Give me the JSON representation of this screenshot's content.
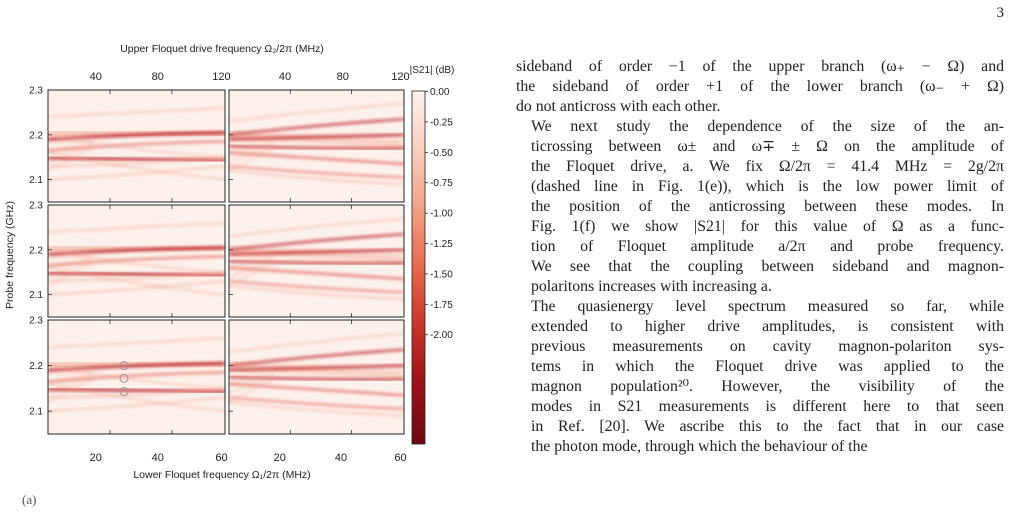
{
  "page": {
    "number": "3"
  },
  "figure": {
    "top_axis_label": "Upper Floquet drive frequency Ω₂/2π (MHz)",
    "bottom_axis_label": "Lower Floquet frequency Ω₁/2π (MHz)",
    "y_axis_label": "Probe frequency (GHz)",
    "colorbar_label": "|S21| (dB)",
    "top_ticks": [
      "40",
      "80",
      "120",
      "40",
      "80",
      "120"
    ],
    "bottom_ticks": [
      "20",
      "40",
      "60",
      "20",
      "40",
      "60"
    ],
    "y_ticks": [
      "2.3",
      "2.2",
      "2.1"
    ],
    "colorbar_ticks": [
      "0.00",
      "-0.25",
      "-0.50",
      "-0.75",
      "-1.00",
      "-1.25",
      "-1.50",
      "-1.75",
      "-2.00"
    ],
    "colorbar_colors": [
      "#fdf3ee",
      "#f9cfbf",
      "#f2a186",
      "#e56a4b",
      "#c8342a",
      "#9a1018",
      "#6b0a10"
    ],
    "caption_fragment": "(a)"
  },
  "text": {
    "p1_lines": [
      "sideband of order −1 of the upper branch (ω₊ − Ω) and",
      "the sideband of order +1 of the lower branch (ω₋ + Ω)",
      "do not anticross with each other."
    ],
    "p2_lines": [
      "We next study the dependence of the size of the an-",
      "ticrossing between ω± and ω∓ ± Ω on the amplitude of",
      "the Floquet drive, a. We fix Ω/2π = 41.4 MHz = 2g/2π",
      "(dashed line in Fig. 1(e)), which is the low power limit of",
      "the position of the anticrossing between these modes. In",
      "Fig. 1(f) we show |S21| for this value of Ω as a func-",
      "tion of Floquet amplitude a/2π and probe frequency.",
      "We see that the coupling between sideband and magnon-",
      "polaritons increases with increasing a."
    ],
    "p3_lines": [
      "The quasienergy level spectrum measured so far, while",
      "extended to higher drive amplitudes, is consistent with",
      "previous measurements on cavity magnon-polariton sys-",
      "tems in which the Floquet drive was applied to the",
      "magnon population²⁰. However, the visibility of the",
      "modes in S21 measurements is different here to that seen",
      "in Ref. [20]. We ascribe this to the fact that in our case",
      "the photon mode, through which the behaviour of the"
    ]
  }
}
